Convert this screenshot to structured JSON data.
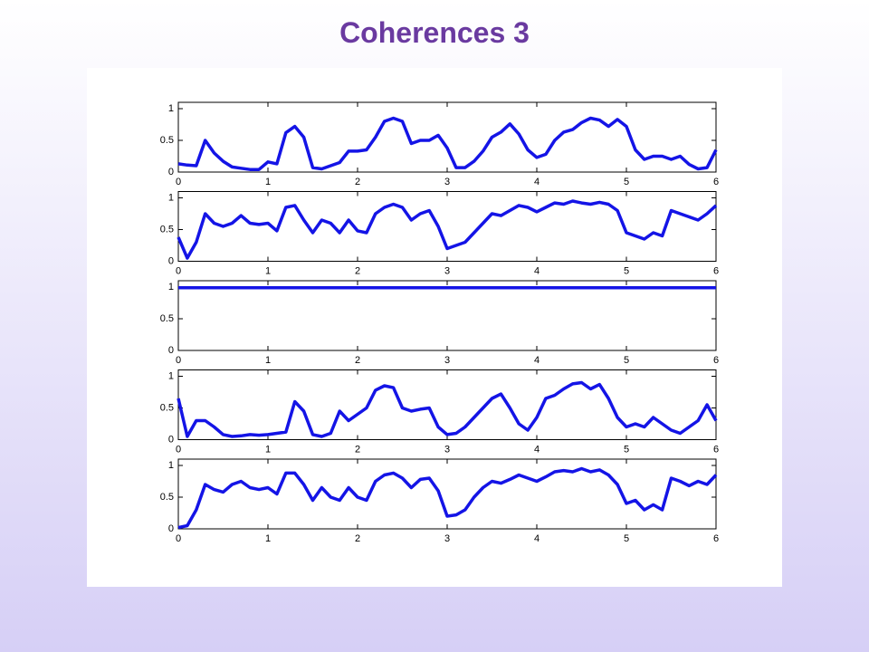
{
  "title": "Coherences 3",
  "chart_data": [
    {
      "type": "line",
      "color": "#1414e6",
      "xlim": [
        0,
        6
      ],
      "ylim": [
        0,
        1.1
      ],
      "xticks": [
        0,
        1,
        2,
        3,
        4,
        5,
        6
      ],
      "yticks": [
        0,
        0.5,
        1
      ],
      "x": [
        0,
        0.1,
        0.2,
        0.3,
        0.4,
        0.5,
        0.6,
        0.7,
        0.8,
        0.9,
        1,
        1.1,
        1.2,
        1.3,
        1.4,
        1.5,
        1.6,
        1.7,
        1.8,
        1.9,
        2,
        2.1,
        2.2,
        2.3,
        2.4,
        2.5,
        2.6,
        2.7,
        2.8,
        2.9,
        3,
        3.1,
        3.2,
        3.3,
        3.4,
        3.5,
        3.6,
        3.7,
        3.8,
        3.9,
        4,
        4.1,
        4.2,
        4.3,
        4.4,
        4.5,
        4.6,
        4.7,
        4.8,
        4.9,
        5,
        5.1,
        5.2,
        5.3,
        5.4,
        5.5,
        5.6,
        5.7,
        5.8,
        5.9,
        6
      ],
      "values": [
        0.13,
        0.11,
        0.1,
        0.5,
        0.3,
        0.17,
        0.08,
        0.06,
        0.04,
        0.04,
        0.16,
        0.13,
        0.62,
        0.72,
        0.55,
        0.07,
        0.05,
        0.1,
        0.15,
        0.33,
        0.33,
        0.35,
        0.55,
        0.8,
        0.85,
        0.8,
        0.45,
        0.5,
        0.5,
        0.58,
        0.38,
        0.07,
        0.07,
        0.17,
        0.33,
        0.55,
        0.63,
        0.76,
        0.6,
        0.35,
        0.23,
        0.28,
        0.5,
        0.63,
        0.67,
        0.78,
        0.85,
        0.82,
        0.72,
        0.83,
        0.72,
        0.35,
        0.2,
        0.25,
        0.25,
        0.2,
        0.25,
        0.12,
        0.05,
        0.07,
        0.35
      ]
    },
    {
      "type": "line",
      "color": "#1414e6",
      "xlim": [
        0,
        6
      ],
      "ylim": [
        0,
        1.1
      ],
      "xticks": [
        0,
        1,
        2,
        3,
        4,
        5,
        6
      ],
      "yticks": [
        0,
        0.5,
        1
      ],
      "x": [
        0,
        0.1,
        0.2,
        0.3,
        0.4,
        0.5,
        0.6,
        0.7,
        0.8,
        0.9,
        1,
        1.1,
        1.2,
        1.3,
        1.4,
        1.5,
        1.6,
        1.7,
        1.8,
        1.9,
        2,
        2.1,
        2.2,
        2.3,
        2.4,
        2.5,
        2.6,
        2.7,
        2.8,
        2.9,
        3,
        3.1,
        3.2,
        3.3,
        3.4,
        3.5,
        3.6,
        3.7,
        3.8,
        3.9,
        4,
        4.1,
        4.2,
        4.3,
        4.4,
        4.5,
        4.6,
        4.7,
        4.8,
        4.9,
        5,
        5.1,
        5.2,
        5.3,
        5.4,
        5.5,
        5.6,
        5.7,
        5.8,
        5.9,
        6
      ],
      "values": [
        0.38,
        0.05,
        0.3,
        0.75,
        0.6,
        0.55,
        0.6,
        0.72,
        0.6,
        0.58,
        0.6,
        0.48,
        0.85,
        0.88,
        0.65,
        0.45,
        0.65,
        0.6,
        0.45,
        0.65,
        0.48,
        0.45,
        0.75,
        0.85,
        0.9,
        0.85,
        0.65,
        0.75,
        0.8,
        0.55,
        0.2,
        0.25,
        0.3,
        0.45,
        0.6,
        0.75,
        0.72,
        0.8,
        0.88,
        0.85,
        0.78,
        0.85,
        0.92,
        0.9,
        0.95,
        0.92,
        0.9,
        0.93,
        0.9,
        0.8,
        0.45,
        0.4,
        0.35,
        0.45,
        0.4,
        0.8,
        0.75,
        0.7,
        0.65,
        0.75,
        0.88
      ]
    },
    {
      "type": "line",
      "color": "#1414e6",
      "xlim": [
        0,
        6
      ],
      "ylim": [
        0,
        1.1
      ],
      "xticks": [
        0,
        1,
        2,
        3,
        4,
        5,
        6
      ],
      "yticks": [
        0,
        0.5,
        1
      ],
      "x": [
        0,
        1,
        2,
        3,
        4,
        5,
        6
      ],
      "values": [
        0.99,
        0.99,
        0.99,
        0.99,
        0.99,
        0.99,
        0.99
      ]
    },
    {
      "type": "line",
      "color": "#1414e6",
      "xlim": [
        0,
        6
      ],
      "ylim": [
        0,
        1.1
      ],
      "xticks": [
        0,
        1,
        2,
        3,
        4,
        5,
        6
      ],
      "yticks": [
        0,
        0.5,
        1
      ],
      "x": [
        0,
        0.1,
        0.2,
        0.3,
        0.4,
        0.5,
        0.6,
        0.7,
        0.8,
        0.9,
        1,
        1.1,
        1.2,
        1.3,
        1.4,
        1.5,
        1.6,
        1.7,
        1.8,
        1.9,
        2,
        2.1,
        2.2,
        2.3,
        2.4,
        2.5,
        2.6,
        2.7,
        2.8,
        2.9,
        3,
        3.1,
        3.2,
        3.3,
        3.4,
        3.5,
        3.6,
        3.7,
        3.8,
        3.9,
        4,
        4.1,
        4.2,
        4.3,
        4.4,
        4.5,
        4.6,
        4.7,
        4.8,
        4.9,
        5,
        5.1,
        5.2,
        5.3,
        5.4,
        5.5,
        5.6,
        5.7,
        5.8,
        5.9,
        6
      ],
      "values": [
        0.65,
        0.05,
        0.3,
        0.3,
        0.2,
        0.08,
        0.05,
        0.06,
        0.08,
        0.07,
        0.08,
        0.1,
        0.12,
        0.6,
        0.45,
        0.08,
        0.05,
        0.1,
        0.45,
        0.3,
        0.4,
        0.5,
        0.78,
        0.85,
        0.82,
        0.5,
        0.45,
        0.48,
        0.5,
        0.2,
        0.08,
        0.1,
        0.2,
        0.35,
        0.5,
        0.65,
        0.72,
        0.5,
        0.25,
        0.15,
        0.35,
        0.65,
        0.7,
        0.8,
        0.88,
        0.9,
        0.8,
        0.87,
        0.65,
        0.35,
        0.2,
        0.25,
        0.2,
        0.35,
        0.25,
        0.15,
        0.1,
        0.2,
        0.3,
        0.55,
        0.3
      ]
    },
    {
      "type": "line",
      "color": "#1414e6",
      "xlim": [
        0,
        6
      ],
      "ylim": [
        0,
        1.1
      ],
      "xticks": [
        0,
        1,
        2,
        3,
        4,
        5,
        6
      ],
      "yticks": [
        0,
        0.5,
        1
      ],
      "x": [
        0,
        0.1,
        0.2,
        0.3,
        0.4,
        0.5,
        0.6,
        0.7,
        0.8,
        0.9,
        1,
        1.1,
        1.2,
        1.3,
        1.4,
        1.5,
        1.6,
        1.7,
        1.8,
        1.9,
        2,
        2.1,
        2.2,
        2.3,
        2.4,
        2.5,
        2.6,
        2.7,
        2.8,
        2.9,
        3,
        3.1,
        3.2,
        3.3,
        3.4,
        3.5,
        3.6,
        3.7,
        3.8,
        3.9,
        4,
        4.1,
        4.2,
        4.3,
        4.4,
        4.5,
        4.6,
        4.7,
        4.8,
        4.9,
        5,
        5.1,
        5.2,
        5.3,
        5.4,
        5.5,
        5.6,
        5.7,
        5.8,
        5.9,
        6
      ],
      "values": [
        0.02,
        0.05,
        0.3,
        0.7,
        0.62,
        0.58,
        0.7,
        0.75,
        0.65,
        0.62,
        0.65,
        0.55,
        0.88,
        0.88,
        0.7,
        0.45,
        0.65,
        0.5,
        0.45,
        0.65,
        0.5,
        0.45,
        0.75,
        0.85,
        0.88,
        0.8,
        0.65,
        0.78,
        0.8,
        0.6,
        0.2,
        0.22,
        0.3,
        0.5,
        0.65,
        0.75,
        0.72,
        0.78,
        0.85,
        0.8,
        0.75,
        0.82,
        0.9,
        0.92,
        0.9,
        0.95,
        0.9,
        0.93,
        0.85,
        0.7,
        0.4,
        0.45,
        0.3,
        0.38,
        0.3,
        0.8,
        0.75,
        0.68,
        0.75,
        0.7,
        0.85
      ]
    }
  ]
}
